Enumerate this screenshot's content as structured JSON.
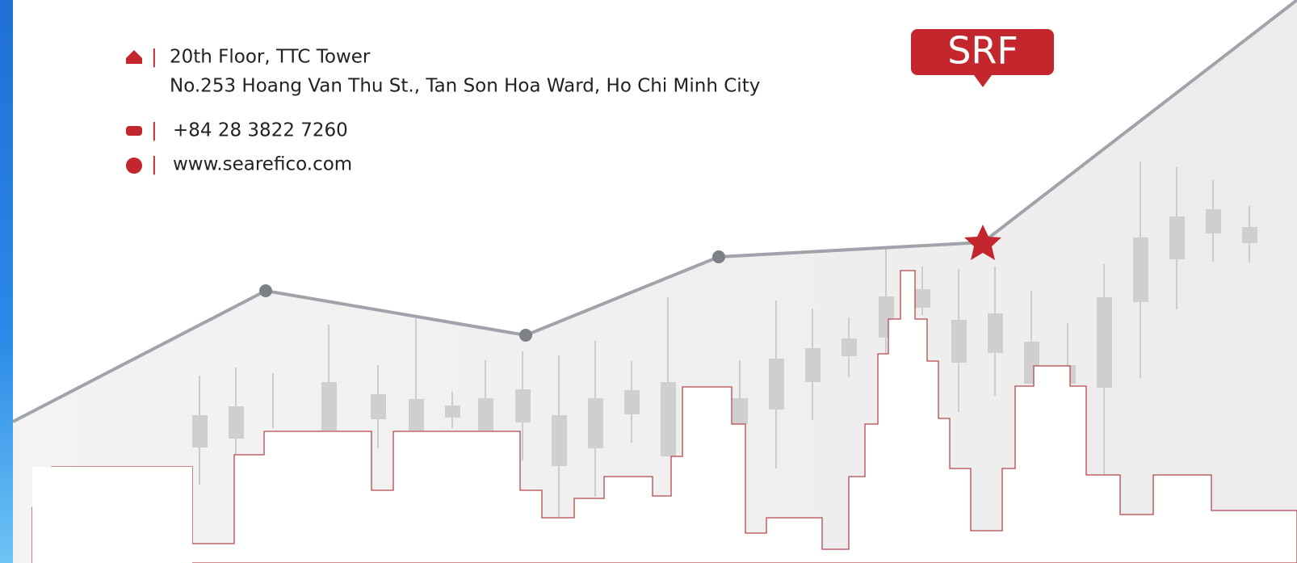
{
  "contact": {
    "address_line1": "20th Floor, TTC Tower",
    "address_line2": "No.253 Hoang Van Thu St., Tan Son Hoa Ward, Ho Chi Minh City",
    "phone": "+84 28 3822 7260",
    "website": "www.searefico.com"
  },
  "badge": "SRF"
}
